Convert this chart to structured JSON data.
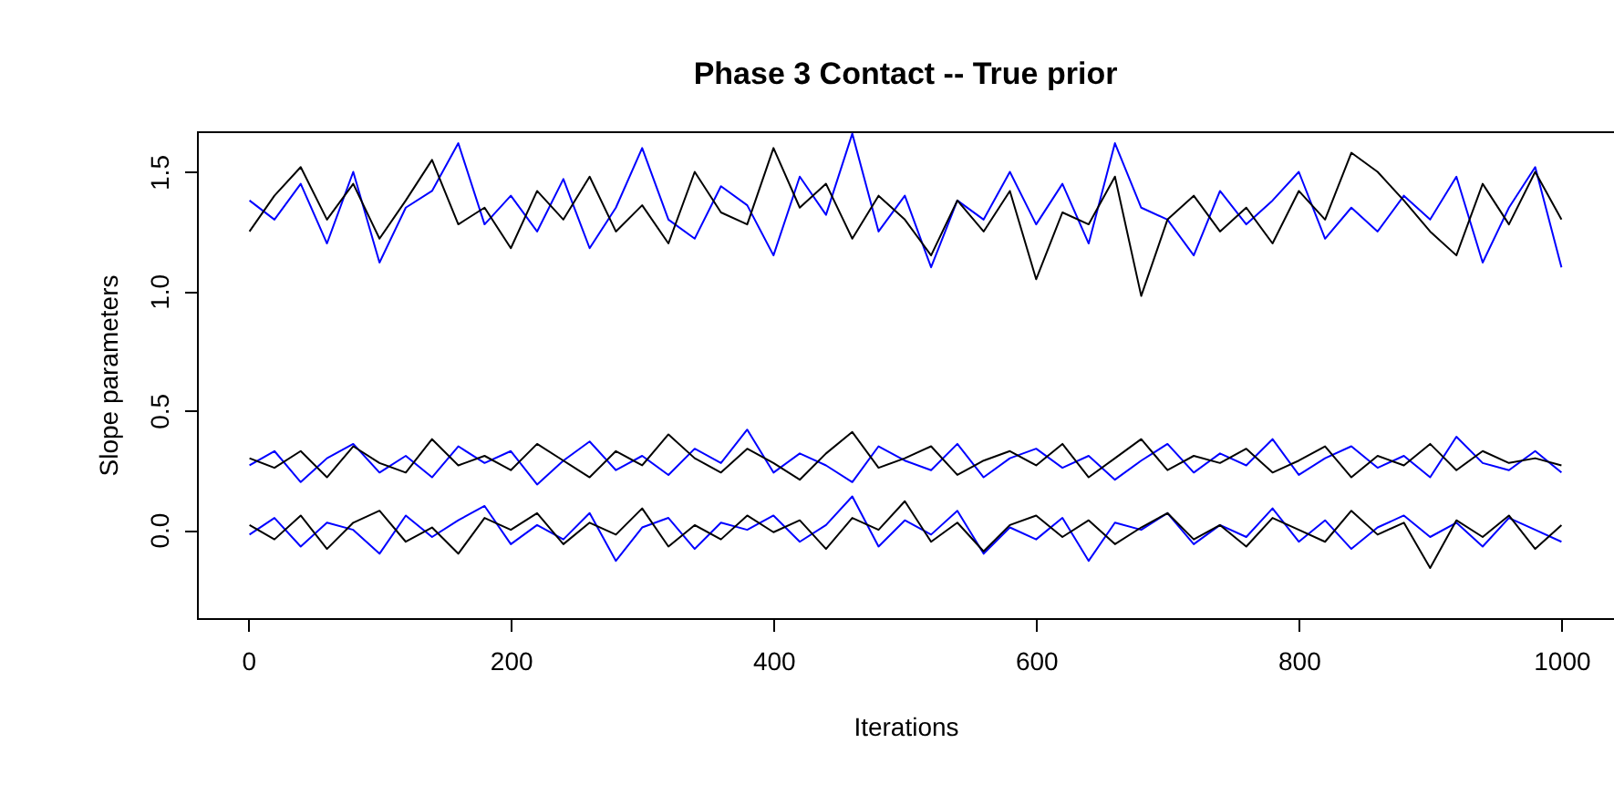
{
  "chart_data": {
    "type": "line",
    "title": "Phase 3 Contact -- True prior",
    "xlabel": "Iterations",
    "ylabel": "Slope parameters",
    "xlim": [
      -39,
      1040
    ],
    "xticks": [
      0,
      200,
      400,
      600,
      800,
      1000
    ],
    "ylim": [
      -0.37,
      1.67
    ],
    "yticks": [
      {
        "value": 0,
        "label": "0.0"
      },
      {
        "value": 0.5,
        "label": "0.5"
      },
      {
        "value": 1,
        "label": "1.0"
      },
      {
        "value": 1.5,
        "label": "1.5"
      }
    ],
    "x": [
      1,
      20,
      40,
      60,
      80,
      100,
      120,
      140,
      160,
      180,
      200,
      220,
      240,
      260,
      280,
      300,
      320,
      340,
      360,
      380,
      400,
      420,
      440,
      460,
      480,
      500,
      520,
      540,
      560,
      580,
      600,
      620,
      640,
      660,
      680,
      700,
      720,
      740,
      760,
      780,
      800,
      820,
      840,
      860,
      880,
      900,
      920,
      940,
      960,
      980,
      1000
    ],
    "series": [
      {
        "color": "#0000ff",
        "values": [
          1.38,
          1.3,
          1.45,
          1.2,
          1.5,
          1.12,
          1.35,
          1.42,
          1.62,
          1.28,
          1.4,
          1.25,
          1.47,
          1.18,
          1.35,
          1.6,
          1.3,
          1.22,
          1.44,
          1.36,
          1.15,
          1.48,
          1.32,
          1.66,
          1.25,
          1.4,
          1.1,
          1.38,
          1.3,
          1.5,
          1.28,
          1.45,
          1.2,
          1.62,
          1.35,
          1.3,
          1.15,
          1.42,
          1.28,
          1.38,
          1.5,
          1.22,
          1.35,
          1.25,
          1.4,
          1.3,
          1.48,
          1.12,
          1.35,
          1.52,
          1.1
        ]
      },
      {
        "color": "#000000",
        "values": [
          1.25,
          1.4,
          1.52,
          1.3,
          1.45,
          1.22,
          1.38,
          1.55,
          1.28,
          1.35,
          1.18,
          1.42,
          1.3,
          1.48,
          1.25,
          1.36,
          1.2,
          1.5,
          1.33,
          1.28,
          1.6,
          1.35,
          1.45,
          1.22,
          1.4,
          1.3,
          1.15,
          1.38,
          1.25,
          1.42,
          1.05,
          1.33,
          1.28,
          1.48,
          0.98,
          1.3,
          1.4,
          1.25,
          1.35,
          1.2,
          1.42,
          1.3,
          1.58,
          1.5,
          1.38,
          1.25,
          1.15,
          1.45,
          1.28,
          1.5,
          1.3
        ]
      },
      {
        "color": "#0000ff",
        "values": [
          0.27,
          0.33,
          0.2,
          0.3,
          0.36,
          0.24,
          0.31,
          0.22,
          0.35,
          0.28,
          0.33,
          0.19,
          0.29,
          0.37,
          0.25,
          0.31,
          0.23,
          0.34,
          0.28,
          0.42,
          0.24,
          0.32,
          0.27,
          0.2,
          0.35,
          0.29,
          0.25,
          0.36,
          0.22,
          0.3,
          0.34,
          0.26,
          0.31,
          0.21,
          0.29,
          0.36,
          0.24,
          0.32,
          0.27,
          0.38,
          0.23,
          0.3,
          0.35,
          0.26,
          0.31,
          0.22,
          0.39,
          0.28,
          0.25,
          0.33,
          0.24
        ]
      },
      {
        "color": "#000000",
        "values": [
          0.3,
          0.26,
          0.33,
          0.22,
          0.35,
          0.28,
          0.24,
          0.38,
          0.27,
          0.31,
          0.25,
          0.36,
          0.29,
          0.22,
          0.33,
          0.27,
          0.4,
          0.3,
          0.24,
          0.34,
          0.28,
          0.21,
          0.32,
          0.41,
          0.26,
          0.3,
          0.35,
          0.23,
          0.29,
          0.33,
          0.27,
          0.36,
          0.22,
          0.3,
          0.38,
          0.25,
          0.31,
          0.28,
          0.34,
          0.24,
          0.29,
          0.35,
          0.22,
          0.31,
          0.27,
          0.36,
          0.25,
          0.33,
          0.28,
          0.3,
          0.27
        ]
      },
      {
        "color": "#0000ff",
        "values": [
          -0.02,
          0.05,
          -0.07,
          0.03,
          0.0,
          -0.1,
          0.06,
          -0.03,
          0.04,
          0.1,
          -0.06,
          0.02,
          -0.04,
          0.07,
          -0.13,
          0.01,
          0.05,
          -0.08,
          0.03,
          0.0,
          0.06,
          -0.05,
          0.02,
          0.14,
          -0.07,
          0.04,
          -0.02,
          0.08,
          -0.1,
          0.01,
          -0.04,
          0.05,
          -0.13,
          0.03,
          0.0,
          0.07,
          -0.06,
          0.02,
          -0.03,
          0.09,
          -0.05,
          0.04,
          -0.08,
          0.01,
          0.06,
          -0.03,
          0.03,
          -0.07,
          0.05,
          0.0,
          -0.05
        ]
      },
      {
        "color": "#000000",
        "values": [
          0.02,
          -0.04,
          0.06,
          -0.08,
          0.03,
          0.08,
          -0.05,
          0.01,
          -0.1,
          0.05,
          0.0,
          0.07,
          -0.06,
          0.03,
          -0.02,
          0.09,
          -0.07,
          0.02,
          -0.04,
          0.06,
          -0.01,
          0.04,
          -0.08,
          0.05,
          0.0,
          0.12,
          -0.05,
          0.03,
          -0.09,
          0.02,
          0.06,
          -0.03,
          0.04,
          -0.06,
          0.01,
          0.07,
          -0.04,
          0.02,
          -0.07,
          0.05,
          0.0,
          -0.05,
          0.08,
          -0.02,
          0.03,
          -0.16,
          0.04,
          -0.03,
          0.06,
          -0.08,
          0.02
        ]
      }
    ]
  }
}
